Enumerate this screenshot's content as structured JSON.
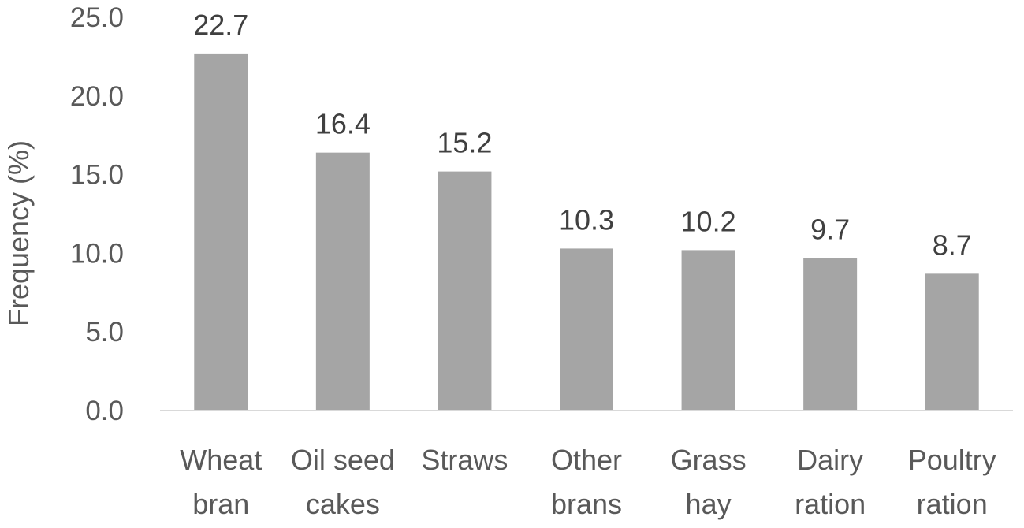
{
  "chart_data": {
    "type": "bar",
    "title": "",
    "xlabel": "",
    "ylabel": "Frequency (%)",
    "ylim": [
      0,
      25
    ],
    "yticks": [
      "0.0",
      "5.0",
      "10.0",
      "15.0",
      "20.0",
      "25.0"
    ],
    "categories": [
      [
        "Wheat",
        "bran"
      ],
      [
        "Oil seed",
        "cakes"
      ],
      [
        "Straws"
      ],
      [
        "Other",
        "brans"
      ],
      [
        "Grass",
        "hay"
      ],
      [
        "Dairy",
        "ration"
      ],
      [
        "Poultry",
        "ration"
      ]
    ],
    "values": [
      22.7,
      16.4,
      15.2,
      10.3,
      10.2,
      9.7,
      8.7
    ],
    "value_labels": [
      "22.7",
      "16.4",
      "15.2",
      "10.3",
      "10.2",
      "9.7",
      "8.7"
    ],
    "grid": false,
    "legend": "none",
    "colors": {
      "bar": "#a5a5a5",
      "axis": "#d9d9d9",
      "text": "#595959"
    }
  }
}
